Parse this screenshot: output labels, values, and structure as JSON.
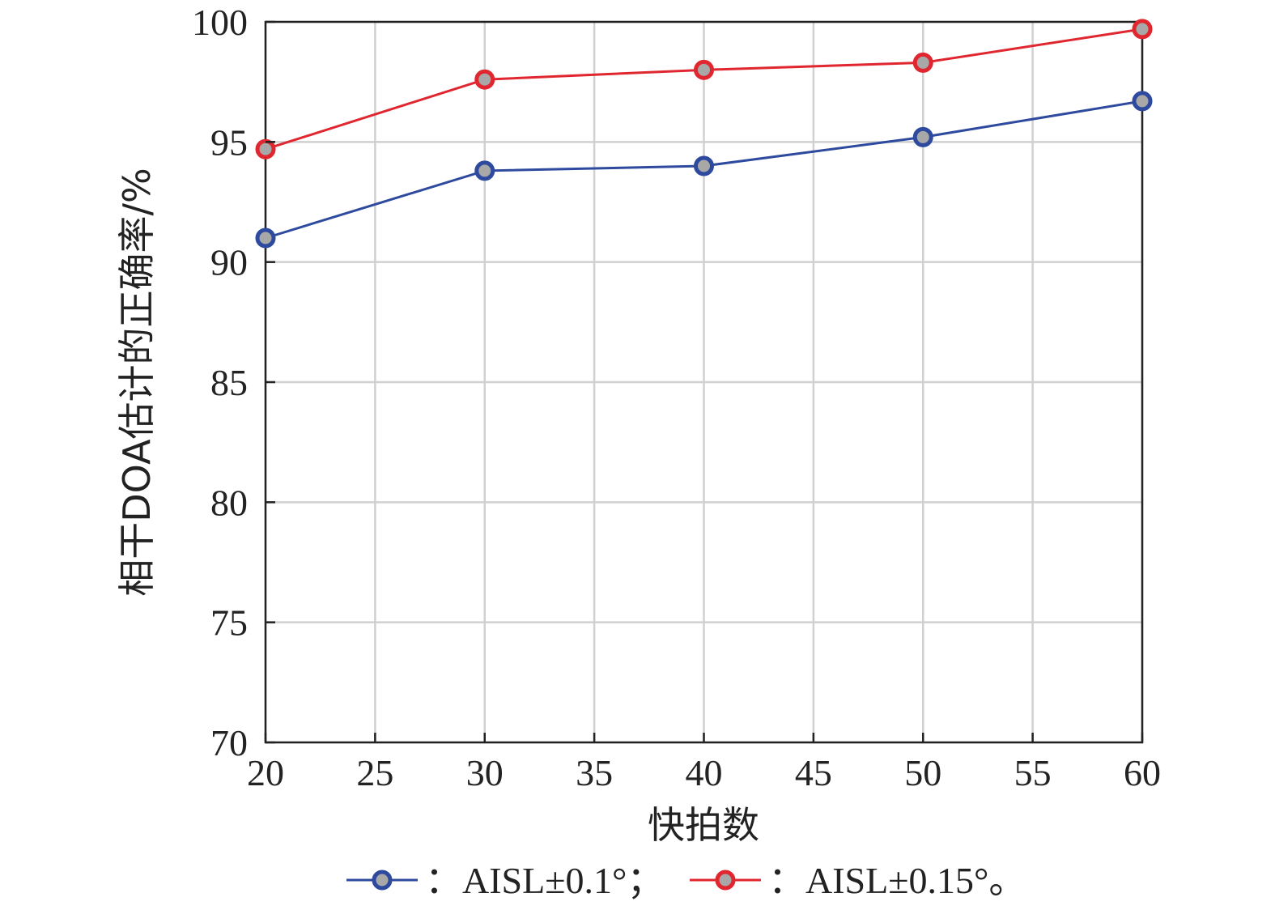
{
  "chart_data": {
    "type": "line",
    "xlabel": "快拍数",
    "ylabel": "相干DOA估计的正确率/%",
    "xlim": [
      20,
      60
    ],
    "ylim": [
      70,
      100
    ],
    "x_ticks": [
      "20",
      "25",
      "30",
      "35",
      "40",
      "45",
      "50",
      "55",
      "60"
    ],
    "y_ticks": [
      "70",
      "75",
      "80",
      "85",
      "90",
      "95",
      "100"
    ],
    "grid": true,
    "legend_position": "bottom",
    "legend_separator": "：",
    "series": [
      {
        "name": "AISL±0.1°；",
        "color": "#2e4a9e",
        "x": [
          20,
          30,
          40,
          50,
          60
        ],
        "y": [
          91.0,
          93.8,
          94.0,
          95.2,
          96.7
        ]
      },
      {
        "name": "AISL±0.15°。",
        "color": "#e0262e",
        "x": [
          20,
          30,
          40,
          50,
          60
        ],
        "y": [
          94.7,
          97.6,
          98.0,
          98.3,
          99.7
        ]
      }
    ]
  }
}
